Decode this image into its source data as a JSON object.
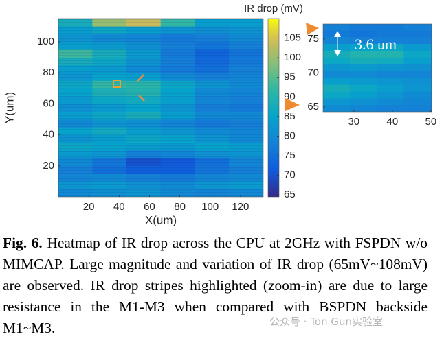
{
  "chart_data": [
    {
      "type": "heatmap",
      "colormap": "parula",
      "x_label": "X(um)",
      "y_label": "Y(um)",
      "x": [
        11.25,
        33.75,
        56.25,
        78.75,
        101.25,
        123.75
      ],
      "y": [
        2.5,
        7.5,
        12.5,
        17.5,
        22.5,
        27.5,
        32.5,
        37.5,
        42.5,
        47.5,
        52.5,
        57.5,
        62.5,
        67.5,
        72.5,
        77.5,
        82.5,
        87.5,
        92.5,
        97.5,
        102.5,
        107.5,
        112.5
      ],
      "values": [
        [
          80,
          81,
          82,
          80,
          79,
          80
        ],
        [
          82,
          83,
          81,
          80,
          82,
          83
        ],
        [
          79,
          80,
          78,
          77,
          79,
          80
        ],
        [
          78,
          75,
          72,
          72,
          76,
          78
        ],
        [
          80,
          76,
          70,
          71,
          75,
          79
        ],
        [
          83,
          82,
          78,
          79,
          81,
          82
        ],
        [
          86,
          85,
          84,
          83,
          85,
          84
        ],
        [
          82,
          84,
          86,
          85,
          82,
          80
        ],
        [
          85,
          87,
          84,
          82,
          80,
          79
        ],
        [
          80,
          82,
          81,
          79,
          77,
          78
        ],
        [
          84,
          86,
          88,
          84,
          80,
          80
        ],
        [
          81,
          83,
          85,
          82,
          78,
          77
        ],
        [
          83,
          86,
          87,
          84,
          79,
          78
        ],
        [
          85,
          89,
          90,
          85,
          80,
          79
        ],
        [
          86,
          92,
          91,
          86,
          82,
          80
        ],
        [
          82,
          85,
          84,
          80,
          78,
          79
        ],
        [
          84,
          83,
          80,
          77,
          75,
          78
        ],
        [
          88,
          86,
          82,
          78,
          74,
          77
        ],
        [
          93,
          88,
          83,
          77,
          73,
          76
        ],
        [
          84,
          83,
          81,
          78,
          76,
          78
        ],
        [
          82,
          80,
          79,
          77,
          78,
          80
        ],
        [
          84,
          86,
          84,
          82,
          81,
          82
        ],
        [
          88,
          100,
          104,
          92,
          84,
          84
        ]
      ],
      "xlim": [
        0,
        135
      ],
      "ylim": [
        0,
        115
      ],
      "xticks": [
        20,
        40,
        60,
        80,
        100,
        120
      ],
      "yticks": [
        20,
        40,
        60,
        80,
        100
      ],
      "colorbar": {
        "label": "IR drop (mV)",
        "clim": [
          64.5,
          110
        ],
        "ticks": [
          65,
          70,
          75,
          80,
          85,
          90,
          95,
          100,
          105
        ]
      }
    },
    {
      "type": "heatmap",
      "colormap": "parula",
      "x": [
        25.5,
        32.5,
        39.5,
        46.5
      ],
      "y": [
        64.8,
        65.8,
        66.8,
        67.8,
        68.8,
        69.8,
        70.8,
        71.8,
        72.8,
        73.8,
        74.8,
        75.8,
        76.8
      ],
      "values": [
        [
          80,
          79,
          78,
          78
        ],
        [
          82,
          81,
          80,
          79
        ],
        [
          86,
          84,
          82,
          80
        ],
        [
          88,
          86,
          84,
          82
        ],
        [
          84,
          83,
          82,
          81
        ],
        [
          80,
          80,
          79,
          79
        ],
        [
          82,
          83,
          82,
          81
        ],
        [
          86,
          88,
          87,
          84
        ],
        [
          88,
          90,
          90,
          86
        ],
        [
          84,
          85,
          86,
          83
        ],
        [
          79,
          78,
          78,
          78
        ],
        [
          77,
          76,
          77,
          77
        ],
        [
          78,
          77,
          77,
          78
        ]
      ],
      "clim": [
        64.5,
        110
      ],
      "xlim": [
        22,
        50.2
      ],
      "ylim": [
        64.3,
        77.2
      ],
      "xticks": [
        30,
        40,
        50
      ],
      "yticks": [
        65,
        70,
        75
      ],
      "annotation": "3.6 um"
    }
  ],
  "caption": {
    "label": "Fig. 6.",
    "text": "Heatmap of IR drop across the CPU at 2GHz with FSPDN w/o MIMCAP. Large magnitude and variation of IR drop (65mV~108mV) are observed. IR drop stripes highlighted (zoom-in) are due to large resistance in the M1-M3 when compared with BSPDN backside M1~M3."
  },
  "watermark": "公众号 · Ton Gun实验室"
}
